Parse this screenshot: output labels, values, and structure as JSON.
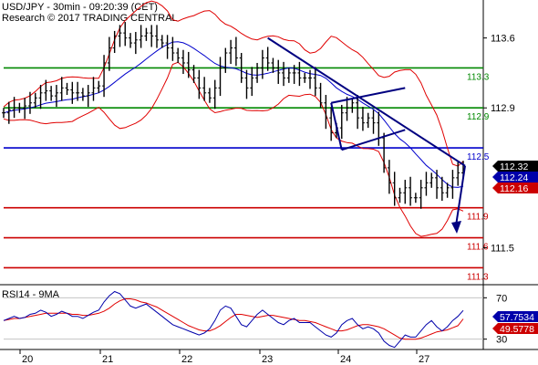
{
  "header": {
    "title": "USD/JPY - 30min - 09:20:39 (CET)",
    "source": "Research © 2017 TRADING CENTRAL"
  },
  "colors": {
    "price": "#000000",
    "bands": "#e00000",
    "ma": "#0000cc",
    "support": "#cc0000",
    "resistance": "#008800",
    "pivot": "#0000cc",
    "trendline": "#000080",
    "rsi": "#0000aa",
    "rsi_ma": "#e00000",
    "last_badge": "#000000",
    "badge_blue": "#0000aa",
    "badge_red": "#cc0000"
  },
  "chart_data": [
    {
      "type": "line",
      "title": "USD/JPY - 30min",
      "x_ticks": [
        "20",
        "21",
        "22",
        "23",
        "24",
        "27"
      ],
      "y_ticks": [
        113.6,
        112.9,
        111.5
      ],
      "ylim": [
        111.13,
        113.98
      ],
      "grid": false,
      "price_series": {
        "name": "USD/JPY",
        "values": [
          112.85,
          112.88,
          112.9,
          112.9,
          112.92,
          112.95,
          113.0,
          113.05,
          113.07,
          113.02,
          113.05,
          113.1,
          113.08,
          113.05,
          113.05,
          113.02,
          113.05,
          113.1,
          113.12,
          113.35,
          113.5,
          113.62,
          113.65,
          113.6,
          113.55,
          113.58,
          113.62,
          113.65,
          113.62,
          113.58,
          113.55,
          113.5,
          113.45,
          113.4,
          113.35,
          113.28,
          113.2,
          113.1,
          113.05,
          113.0,
          113.1,
          113.3,
          113.45,
          113.5,
          113.4,
          113.2,
          113.1,
          113.2,
          113.3,
          113.4,
          113.35,
          113.3,
          113.25,
          113.2,
          113.25,
          113.25,
          113.2,
          113.2,
          113.2,
          113.1,
          112.95,
          112.8,
          112.65,
          112.7,
          112.85,
          112.9,
          112.95,
          112.8,
          112.75,
          112.8,
          112.75,
          112.6,
          112.3,
          112.15,
          112.0,
          112.05,
          112.1,
          112.0,
          112.0,
          112.1,
          112.15,
          112.2,
          112.1,
          112.05,
          112.1,
          112.2,
          112.25,
          112.32
        ],
        "high": 113.72,
        "low": 111.97
      },
      "levels": [
        {
          "value": 113.3,
          "label": "113.3",
          "kind": "resistance"
        },
        {
          "value": 112.9,
          "label": "112.9",
          "kind": "resistance"
        },
        {
          "value": 112.5,
          "label": "112.5",
          "kind": "pivot"
        },
        {
          "value": 111.9,
          "label": "111.9",
          "kind": "support"
        },
        {
          "value": 111.6,
          "label": "111.6",
          "kind": "support"
        },
        {
          "value": 111.3,
          "label": "111.3",
          "kind": "support"
        }
      ],
      "last_values": [
        {
          "label": "112.32",
          "kind": "last"
        },
        {
          "label": "112.24",
          "kind": "blue"
        },
        {
          "label": "112.16",
          "kind": "red"
        }
      ]
    },
    {
      "type": "line",
      "title": "RSI14 - 9MA",
      "y_ticks": [
        70,
        30
      ],
      "ylim": [
        20,
        80
      ],
      "series": [
        {
          "name": "RSI14",
          "values": [
            48,
            50,
            52,
            50,
            51,
            54,
            55,
            58,
            56,
            52,
            54,
            57,
            55,
            52,
            52,
            50,
            53,
            56,
            58,
            66,
            72,
            76,
            74,
            68,
            62,
            60,
            62,
            64,
            60,
            56,
            52,
            48,
            44,
            42,
            40,
            38,
            36,
            34,
            36,
            40,
            48,
            58,
            62,
            60,
            52,
            44,
            42,
            48,
            54,
            58,
            54,
            50,
            46,
            44,
            48,
            50,
            46,
            46,
            46,
            42,
            38,
            34,
            32,
            36,
            44,
            48,
            50,
            44,
            40,
            42,
            40,
            36,
            28,
            24,
            22,
            28,
            34,
            32,
            32,
            38,
            44,
            48,
            42,
            38,
            42,
            48,
            52,
            57.75
          ]
        },
        {
          "name": "9MA",
          "values": [
            48,
            49,
            50,
            50,
            51,
            52,
            53,
            54,
            55,
            55,
            55,
            55,
            55,
            54,
            54,
            53,
            53,
            54,
            55,
            57,
            60,
            64,
            67,
            69,
            69,
            68,
            66,
            65,
            63,
            61,
            58,
            55,
            52,
            49,
            46,
            43,
            41,
            39,
            38,
            38,
            40,
            43,
            47,
            51,
            54,
            54,
            53,
            52,
            51,
            52,
            53,
            53,
            52,
            51,
            50,
            49,
            48,
            48,
            47,
            46,
            44,
            42,
            40,
            38,
            38,
            39,
            41,
            43,
            44,
            44,
            43,
            42,
            40,
            37,
            34,
            31,
            30,
            30,
            30,
            31,
            33,
            35,
            37,
            38,
            39,
            41,
            43,
            49.58
          ]
        }
      ],
      "last_values": [
        {
          "label": "57.7534",
          "kind": "blue"
        },
        {
          "label": "49.5778",
          "kind": "red"
        }
      ]
    }
  ]
}
